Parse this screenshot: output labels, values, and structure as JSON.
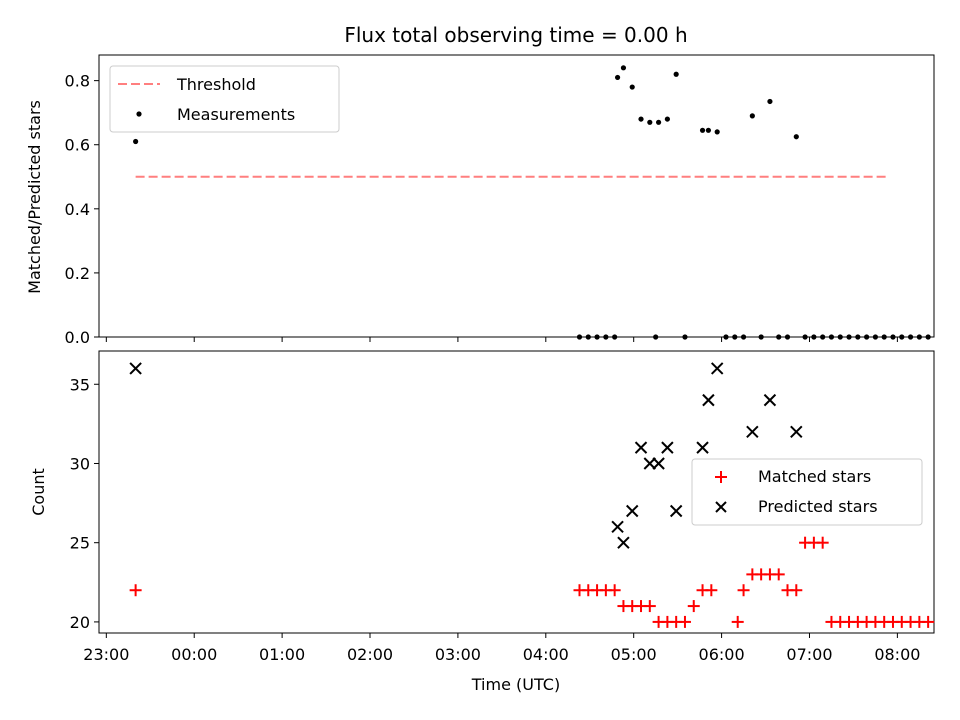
{
  "chart_data": [
    {
      "type": "scatter",
      "title": "Flux total observing time = 0.00 h",
      "xlabel": "",
      "ylabel": "Matched/Predicted stars",
      "ylim": [
        0.0,
        0.88
      ],
      "yticks": [
        0.0,
        0.2,
        0.4,
        0.6,
        0.8
      ],
      "ytick_labels": [
        "0.0",
        "0.2",
        "0.4",
        "0.6",
        "0.8"
      ],
      "xlim": [
        "22:55",
        "08:25"
      ],
      "grid": false,
      "legend_position": "upper-left",
      "threshold": {
        "name": "Threshold",
        "color": "#ff7f7f",
        "style": "dashed",
        "y": 0.5,
        "x_range": [
          "23:20",
          "07:53"
        ]
      },
      "series": [
        {
          "name": "Measurements",
          "color": "#000000",
          "marker": "dot",
          "points": [
            {
              "x": "23:20",
              "y": 0.61
            },
            {
              "x": "04:23",
              "y": 0.0
            },
            {
              "x": "04:29",
              "y": 0.0
            },
            {
              "x": "04:35",
              "y": 0.0
            },
            {
              "x": "04:41",
              "y": 0.0
            },
            {
              "x": "04:47",
              "y": 0.0
            },
            {
              "x": "04:49",
              "y": 0.81
            },
            {
              "x": "04:53",
              "y": 0.84
            },
            {
              "x": "04:59",
              "y": 0.78
            },
            {
              "x": "05:05",
              "y": 0.68
            },
            {
              "x": "05:11",
              "y": 0.67
            },
            {
              "x": "05:15",
              "y": 0.0
            },
            {
              "x": "05:17",
              "y": 0.67
            },
            {
              "x": "05:23",
              "y": 0.68
            },
            {
              "x": "05:29",
              "y": 0.82
            },
            {
              "x": "05:35",
              "y": 0.0
            },
            {
              "x": "05:47",
              "y": 0.645
            },
            {
              "x": "05:51",
              "y": 0.645
            },
            {
              "x": "05:57",
              "y": 0.64
            },
            {
              "x": "06:03",
              "y": 0.0
            },
            {
              "x": "06:09",
              "y": 0.0
            },
            {
              "x": "06:15",
              "y": 0.0
            },
            {
              "x": "06:21",
              "y": 0.69
            },
            {
              "x": "06:27",
              "y": 0.0
            },
            {
              "x": "06:33",
              "y": 0.735
            },
            {
              "x": "06:39",
              "y": 0.0
            },
            {
              "x": "06:45",
              "y": 0.0
            },
            {
              "x": "06:51",
              "y": 0.625
            },
            {
              "x": "06:57",
              "y": 0.0
            },
            {
              "x": "07:03",
              "y": 0.0
            },
            {
              "x": "07:09",
              "y": 0.0
            },
            {
              "x": "07:15",
              "y": 0.0
            },
            {
              "x": "07:21",
              "y": 0.0
            },
            {
              "x": "07:27",
              "y": 0.0
            },
            {
              "x": "07:33",
              "y": 0.0
            },
            {
              "x": "07:39",
              "y": 0.0
            },
            {
              "x": "07:45",
              "y": 0.0
            },
            {
              "x": "07:51",
              "y": 0.0
            },
            {
              "x": "07:57",
              "y": 0.0
            },
            {
              "x": "08:03",
              "y": 0.0
            },
            {
              "x": "08:09",
              "y": 0.0
            },
            {
              "x": "08:15",
              "y": 0.0
            },
            {
              "x": "08:21",
              "y": 0.0
            }
          ]
        }
      ]
    },
    {
      "type": "scatter",
      "title": "",
      "xlabel": "Time (UTC)",
      "ylabel": "Count",
      "ylim": [
        19.3,
        37.1
      ],
      "yticks": [
        20,
        25,
        30,
        35
      ],
      "ytick_labels": [
        "20",
        "25",
        "30",
        "35"
      ],
      "xlim": [
        "22:55",
        "08:25"
      ],
      "xticks": [
        "23:00",
        "00:00",
        "01:00",
        "02:00",
        "03:00",
        "04:00",
        "05:00",
        "06:00",
        "07:00",
        "08:00"
      ],
      "grid": false,
      "legend_position": "center-right",
      "series": [
        {
          "name": "Matched stars",
          "color": "#ff0000",
          "marker": "plus",
          "points": [
            {
              "x": "23:20",
              "y": 22
            },
            {
              "x": "04:23",
              "y": 22
            },
            {
              "x": "04:29",
              "y": 22
            },
            {
              "x": "04:35",
              "y": 22
            },
            {
              "x": "04:41",
              "y": 22
            },
            {
              "x": "04:47",
              "y": 22
            },
            {
              "x": "04:53",
              "y": 21
            },
            {
              "x": "04:59",
              "y": 21
            },
            {
              "x": "05:05",
              "y": 21
            },
            {
              "x": "05:11",
              "y": 21
            },
            {
              "x": "05:17",
              "y": 20
            },
            {
              "x": "05:23",
              "y": 20
            },
            {
              "x": "05:29",
              "y": 20
            },
            {
              "x": "05:35",
              "y": 20
            },
            {
              "x": "05:41",
              "y": 21
            },
            {
              "x": "05:47",
              "y": 22
            },
            {
              "x": "05:53",
              "y": 22
            },
            {
              "x": "06:11",
              "y": 20
            },
            {
              "x": "06:15",
              "y": 22
            },
            {
              "x": "06:21",
              "y": 23
            },
            {
              "x": "06:27",
              "y": 23
            },
            {
              "x": "06:33",
              "y": 23
            },
            {
              "x": "06:39",
              "y": 23
            },
            {
              "x": "06:45",
              "y": 22
            },
            {
              "x": "06:51",
              "y": 22
            },
            {
              "x": "06:57",
              "y": 25
            },
            {
              "x": "07:03",
              "y": 25
            },
            {
              "x": "07:09",
              "y": 25
            },
            {
              "x": "07:15",
              "y": 20
            },
            {
              "x": "07:21",
              "y": 20
            },
            {
              "x": "07:27",
              "y": 20
            },
            {
              "x": "07:33",
              "y": 20
            },
            {
              "x": "07:39",
              "y": 20
            },
            {
              "x": "07:45",
              "y": 20
            },
            {
              "x": "07:51",
              "y": 20
            },
            {
              "x": "07:57",
              "y": 20
            },
            {
              "x": "08:03",
              "y": 20
            },
            {
              "x": "08:09",
              "y": 20
            },
            {
              "x": "08:15",
              "y": 20
            },
            {
              "x": "08:21",
              "y": 20
            }
          ]
        },
        {
          "name": "Predicted stars",
          "color": "#000000",
          "marker": "x",
          "points": [
            {
              "x": "23:20",
              "y": 36
            },
            {
              "x": "04:49",
              "y": 26
            },
            {
              "x": "04:53",
              "y": 25
            },
            {
              "x": "04:59",
              "y": 27
            },
            {
              "x": "05:05",
              "y": 31
            },
            {
              "x": "05:11",
              "y": 30
            },
            {
              "x": "05:17",
              "y": 30
            },
            {
              "x": "05:23",
              "y": 31
            },
            {
              "x": "05:29",
              "y": 27
            },
            {
              "x": "05:47",
              "y": 31
            },
            {
              "x": "05:51",
              "y": 34
            },
            {
              "x": "05:57",
              "y": 36
            },
            {
              "x": "06:21",
              "y": 32
            },
            {
              "x": "06:33",
              "y": 34
            },
            {
              "x": "06:51",
              "y": 32
            }
          ]
        }
      ]
    }
  ]
}
